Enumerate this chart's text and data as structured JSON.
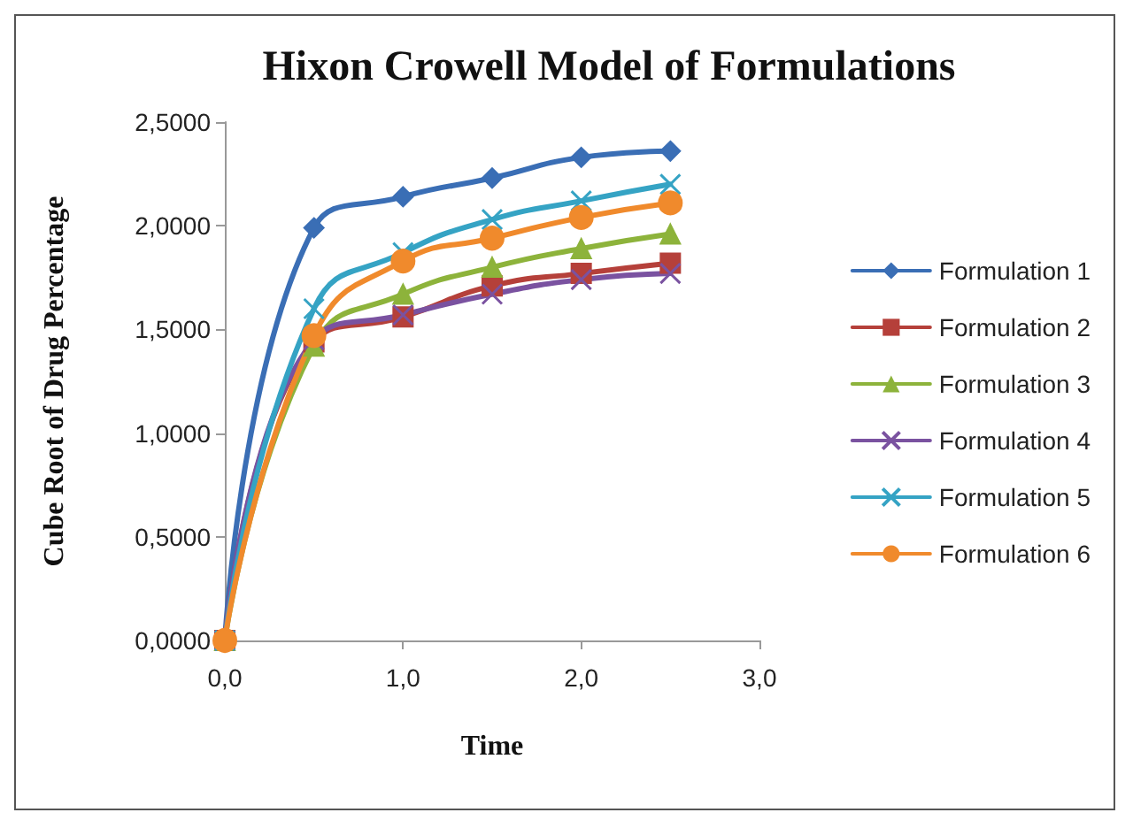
{
  "chart_data": {
    "type": "line",
    "title": "Hixon Crowell Model of Formulations",
    "xlabel": "Time",
    "ylabel": "Cube Root of Drug Percentage",
    "x": [
      0,
      0.5,
      1,
      1.5,
      2,
      2.5
    ],
    "series": [
      {
        "name": "Formulation 1",
        "color": "#3a6eb5",
        "marker": "diamond",
        "values": [
          0,
          1.99,
          2.14,
          2.23,
          2.33,
          2.36
        ]
      },
      {
        "name": "Formulation 2",
        "color": "#b5403a",
        "marker": "square",
        "values": [
          0,
          1.44,
          1.56,
          1.71,
          1.77,
          1.82
        ]
      },
      {
        "name": "Formulation 3",
        "color": "#8db33b",
        "marker": "triangle",
        "values": [
          0,
          1.42,
          1.67,
          1.8,
          1.89,
          1.96
        ]
      },
      {
        "name": "Formulation 4",
        "color": "#7a52a0",
        "marker": "cross",
        "values": [
          0,
          1.45,
          1.57,
          1.67,
          1.74,
          1.77
        ]
      },
      {
        "name": "Formulation 5",
        "color": "#35a3c4",
        "marker": "cross",
        "values": [
          0,
          1.6,
          1.87,
          2.03,
          2.12,
          2.2
        ]
      },
      {
        "name": "Formulation 6",
        "color": "#f08a2c",
        "marker": "circle",
        "values": [
          0,
          1.47,
          1.83,
          1.94,
          2.04,
          2.11
        ]
      }
    ],
    "xlim": [
      0,
      3
    ],
    "xticks": [
      {
        "value": 0,
        "label": "0,0"
      },
      {
        "value": 1,
        "label": "1,0"
      },
      {
        "value": 2,
        "label": "2,0"
      },
      {
        "value": 3,
        "label": "3,0"
      }
    ],
    "ylim": [
      0,
      2.5
    ],
    "yticks": [
      {
        "value": 0,
        "label": "0,0000"
      },
      {
        "value": 0.5,
        "label": "0,5000"
      },
      {
        "value": 1,
        "label": "1,0000"
      },
      {
        "value": 1.5,
        "label": "1,5000"
      },
      {
        "value": 2,
        "label": "2,0000"
      },
      {
        "value": 2.5,
        "label": "2,5000"
      }
    ],
    "grid": false,
    "legend": "right",
    "line_style": "solid"
  }
}
